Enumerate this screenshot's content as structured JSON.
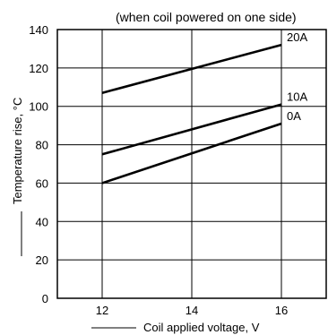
{
  "chart_data": {
    "type": "line",
    "note": "(when coil powered on one side)",
    "xlabel": "Coil applied voltage, V",
    "ylabel": "Temperature rise, °C",
    "xlim": [
      11,
      17
    ],
    "ylim": [
      0,
      140
    ],
    "x_ticks": [
      12,
      14,
      16
    ],
    "y_ticks": [
      0,
      20,
      40,
      60,
      80,
      100,
      120,
      140
    ],
    "grid": true,
    "series": [
      {
        "name": "20A",
        "x": [
          12,
          16
        ],
        "y": [
          107,
          132
        ]
      },
      {
        "name": "10A",
        "x": [
          12,
          16
        ],
        "y": [
          75,
          101
        ]
      },
      {
        "name": "0A",
        "x": [
          12,
          16
        ],
        "y": [
          60,
          91
        ]
      }
    ]
  }
}
